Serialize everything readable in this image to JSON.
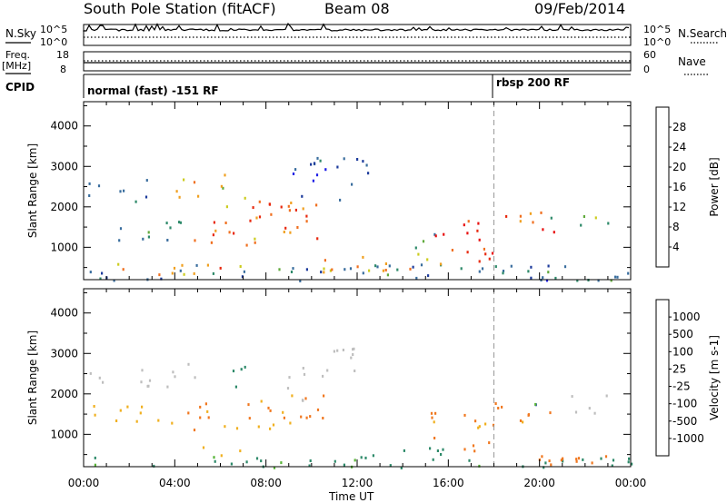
{
  "header": {
    "station": "South Pole Station (fitACF)",
    "beam": "Beam 08",
    "date": "09/Feb/2014"
  },
  "strip": {
    "nsky_label": "N.Sky",
    "nsearch_label": "N.Search",
    "freq_label": "Freq.",
    "freq_unit": "[MHz]",
    "nave_label": "Nave",
    "cpid_label": "CPID",
    "noise_ticks_left": [
      "10^5",
      "10^0"
    ],
    "noise_ticks_right": [
      "10^5",
      "10^0"
    ],
    "freq_ticks": [
      "18",
      "8"
    ],
    "nave_ticks": [
      "60",
      "0"
    ],
    "cpid_segments": [
      {
        "start_hour": 0,
        "label": "normal (fast) -151 RF"
      },
      {
        "start_hour": 18,
        "label": "rbsp 200 RF"
      }
    ]
  },
  "colors": {
    "power": [
      "#1e1ee6",
      "#1e3c9c",
      "#3a6e9e",
      "#2e8a6a",
      "#60aa3c",
      "#cccc20",
      "#f0a020",
      "#f07020",
      "#e82a10",
      "#e81010"
    ],
    "velocity": [
      "#2a3ab8",
      "#3878a0",
      "#2e8a6a",
      "#58b438",
      "#c8c8c8",
      "#f0b020",
      "#f07820",
      "#e83a14",
      "#e81010"
    ],
    "ground_scatter": "#bebebe"
  },
  "chart_data": [
    {
      "type": "heatmap",
      "name": "power",
      "ylabel": "Slant Range [km]",
      "y_ticks": [
        1000,
        2000,
        3000,
        4000
      ],
      "ylim": [
        200,
        4600
      ],
      "xlim": [
        0,
        24
      ],
      "x_tick_labels": [
        "00:00",
        "04:00",
        "08:00",
        "12:00",
        "16:00",
        "20:00",
        "00:00"
      ],
      "x_ticks": [
        0,
        4,
        8,
        12,
        16,
        20,
        24
      ],
      "colorbar": {
        "label": "Power [dB]",
        "ticks": [
          4,
          8,
          12,
          16,
          20,
          24,
          28
        ],
        "range": [
          0,
          32
        ]
      },
      "regions": [
        {
          "t0": 0.0,
          "t1": 3.0,
          "r0": 2100,
          "r1": 2700,
          "v": 10
        },
        {
          "t0": 0.0,
          "t1": 24.0,
          "r0": 200,
          "r1": 600,
          "v": 8
        },
        {
          "t0": 0.2,
          "t1": 5.0,
          "r0": 350,
          "r1": 700,
          "v": 20
        },
        {
          "t0": 1.0,
          "t1": 4.5,
          "r0": 1200,
          "r1": 1800,
          "v": 8
        },
        {
          "t0": 3.0,
          "t1": 5.0,
          "r0": 2200,
          "r1": 2800,
          "v": 22
        },
        {
          "t0": 4.5,
          "t1": 7.5,
          "r0": 1000,
          "r1": 1800,
          "v": 26
        },
        {
          "t0": 5.0,
          "t1": 7.0,
          "r0": 500,
          "r1": 800,
          "v": 24
        },
        {
          "t0": 6.0,
          "t1": 7.3,
          "r0": 2000,
          "r1": 2900,
          "v": 18
        },
        {
          "t0": 7.3,
          "t1": 10.5,
          "r0": 1000,
          "r1": 2200,
          "v": 24
        },
        {
          "t0": 8.5,
          "t1": 9.8,
          "r0": 1800,
          "r1": 2600,
          "v": 24
        },
        {
          "t0": 9.0,
          "t1": 12.5,
          "r0": 2200,
          "r1": 3400,
          "v": 6
        },
        {
          "t0": 10.0,
          "t1": 12.0,
          "r0": 400,
          "r1": 1100,
          "v": 20
        },
        {
          "t0": 12.0,
          "t1": 16.0,
          "r0": 400,
          "r1": 900,
          "v": 22
        },
        {
          "t0": 14.0,
          "t1": 15.5,
          "r0": 1000,
          "r1": 1400,
          "v": 12
        },
        {
          "t0": 15.0,
          "t1": 18.0,
          "r0": 600,
          "r1": 1700,
          "v": 28
        },
        {
          "t0": 18.0,
          "t1": 21.0,
          "r0": 1300,
          "r1": 1900,
          "v": 26
        },
        {
          "t0": 20.0,
          "t1": 23.0,
          "r0": 1500,
          "r1": 1900,
          "v": 14
        },
        {
          "t0": 18.0,
          "t1": 24.0,
          "r0": 200,
          "r1": 600,
          "v": 10
        }
      ]
    },
    {
      "type": "heatmap",
      "name": "velocity",
      "ylabel": "Slant Range [km]",
      "y_ticks": [
        1000,
        2000,
        3000,
        4000
      ],
      "ylim": [
        200,
        4600
      ],
      "xlim": [
        0,
        24
      ],
      "xlabel": "Time UT",
      "x_tick_labels": [
        "00:00",
        "04:00",
        "08:00",
        "12:00",
        "16:00",
        "20:00",
        "00:00"
      ],
      "x_ticks": [
        0,
        4,
        8,
        12,
        16,
        20,
        24
      ],
      "colorbar": {
        "label": "Velocity [m s-1]",
        "ticks": [
          "1000",
          "500",
          "100",
          "25",
          "-25",
          "-100",
          "-500",
          "-1000"
        ]
      },
      "regions": [
        {
          "t0": 0.0,
          "t1": 3.0,
          "r0": 2100,
          "r1": 2700,
          "v": "gs"
        },
        {
          "t0": 0.0,
          "t1": 24.0,
          "r0": 200,
          "r1": 500,
          "v": 100
        },
        {
          "t0": 0.3,
          "t1": 4.5,
          "r0": 1300,
          "r1": 1800,
          "v": -100
        },
        {
          "t0": 3.0,
          "t1": 5.0,
          "r0": 2200,
          "r1": 2800,
          "v": "gs"
        },
        {
          "t0": 4.5,
          "t1": 7.5,
          "r0": 1000,
          "r1": 1800,
          "v": -500
        },
        {
          "t0": 5.0,
          "t1": 7.0,
          "r0": 500,
          "r1": 800,
          "v": -100
        },
        {
          "t0": 6.2,
          "t1": 7.2,
          "r0": 2100,
          "r1": 2900,
          "v": 100
        },
        {
          "t0": 7.3,
          "t1": 10.5,
          "r0": 1000,
          "r1": 2200,
          "v": -500
        },
        {
          "t0": 8.5,
          "t1": 9.8,
          "r0": 1800,
          "r1": 2600,
          "v": "gs"
        },
        {
          "t0": 9.5,
          "t1": 12.0,
          "r0": 2400,
          "r1": 3400,
          "v": "gs"
        },
        {
          "t0": 12.0,
          "t1": 16.0,
          "r0": 400,
          "r1": 900,
          "v": 100
        },
        {
          "t0": 15.0,
          "t1": 18.0,
          "r0": 600,
          "r1": 1700,
          "v": -500
        },
        {
          "t0": 18.0,
          "t1": 21.0,
          "r0": 1300,
          "r1": 1900,
          "v": -500
        },
        {
          "t0": 19.0,
          "t1": 20.2,
          "r0": 1400,
          "r1": 1800,
          "v": 1000
        },
        {
          "t0": 21.0,
          "t1": 23.0,
          "r0": 1500,
          "r1": 2000,
          "v": "gs"
        },
        {
          "t0": 18.0,
          "t1": 24.0,
          "r0": 200,
          "r1": 600,
          "v": -500
        }
      ]
    }
  ]
}
